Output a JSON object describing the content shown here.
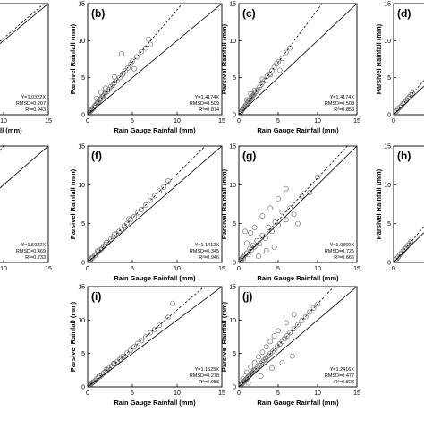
{
  "chart_data": [
    {
      "id": "a",
      "type": "scatter",
      "panel_label": "",
      "xlabel": "Rain Gauge Rainfall (mm)",
      "ylabel": "",
      "xlim": [
        0,
        15
      ],
      "ylim": [
        0,
        15
      ],
      "xticks": [
        10,
        15
      ],
      "yticks": [],
      "stats": [
        "Y=1.0322X",
        "RMSD=0.207",
        "R²=0.943"
      ],
      "fit_slope": 1.0322,
      "x": [
        0.2,
        0.4,
        0.6,
        0.9,
        1.2,
        1.6,
        2.0,
        2.5,
        3.0,
        3.5,
        4.2,
        5.0,
        6.0,
        7.5
      ],
      "y": [
        0.2,
        0.4,
        0.6,
        0.9,
        1.3,
        1.6,
        2.1,
        2.6,
        3.1,
        3.6,
        4.3,
        5.2,
        6.1,
        7.8
      ]
    },
    {
      "id": "b",
      "type": "scatter",
      "panel_label": "(b)",
      "xlabel": "Rain Gauge Rainfall (mm)",
      "ylabel": "Parsivel Rainfall (mm)",
      "xlim": [
        0,
        15
      ],
      "ylim": [
        0,
        15
      ],
      "xticks": [
        0,
        5,
        10,
        15
      ],
      "yticks": [
        0,
        5,
        10,
        15
      ],
      "stats": [
        "Y=1.4174X",
        "RMSD=0.509",
        "R²=0.874"
      ],
      "fit_slope": 1.4174,
      "x": [
        0.1,
        0.2,
        0.3,
        0.4,
        0.5,
        0.6,
        0.7,
        0.8,
        0.9,
        1.0,
        1.1,
        1.2,
        1.3,
        1.4,
        1.5,
        1.6,
        1.7,
        1.8,
        1.9,
        2.0,
        2.2,
        2.4,
        2.6,
        2.8,
        3.0,
        3.3,
        3.6,
        3.9,
        4.2,
        4.5,
        4.8,
        5.0,
        5.5,
        6.0,
        6.5,
        7.0,
        1.0,
        1.5,
        2.0,
        3.0,
        4.0,
        5.2,
        6.8,
        3.8
      ],
      "y": [
        0.1,
        0.3,
        0.5,
        0.6,
        0.7,
        0.8,
        1.0,
        1.2,
        1.3,
        1.5,
        1.6,
        1.7,
        1.9,
        2.1,
        2.2,
        2.4,
        2.5,
        2.6,
        2.8,
        3.0,
        3.1,
        3.4,
        3.8,
        4.0,
        4.3,
        4.6,
        5.0,
        5.4,
        5.9,
        6.3,
        6.8,
        7.2,
        7.8,
        8.5,
        9.0,
        9.5,
        2.2,
        3.0,
        3.6,
        5.1,
        5.6,
        6.2,
        10.2,
        8.2
      ]
    },
    {
      "id": "c",
      "type": "scatter",
      "panel_label": "(c)",
      "xlabel": "Rain Gauge Rainfall (mm)",
      "ylabel": "Parsivel Rainfall (mm)",
      "xlim": [
        0,
        15
      ],
      "ylim": [
        0,
        15
      ],
      "xticks": [
        0,
        5,
        10,
        15
      ],
      "yticks": [
        0,
        5,
        10,
        15
      ],
      "stats": [
        "Y=1.4174X",
        "RMSD=0.508",
        "R²=0.853"
      ],
      "fit_slope": 1.4174,
      "x": [
        0.1,
        0.2,
        0.3,
        0.4,
        0.5,
        0.6,
        0.7,
        0.8,
        0.9,
        1.0,
        1.1,
        1.2,
        1.3,
        1.4,
        1.5,
        1.6,
        1.7,
        1.8,
        1.9,
        2.0,
        2.2,
        2.4,
        2.6,
        2.8,
        3.0,
        3.3,
        3.6,
        3.9,
        4.2,
        4.5,
        4.8,
        5.0,
        5.5,
        6.0,
        1.0,
        1.5,
        2.0,
        3.0,
        4.0,
        5.2,
        6.5
      ],
      "y": [
        0.1,
        0.3,
        0.4,
        0.6,
        0.7,
        0.9,
        1.0,
        1.1,
        1.3,
        1.4,
        1.6,
        1.8,
        1.9,
        2.0,
        2.2,
        2.3,
        2.5,
        2.6,
        2.7,
        2.9,
        3.1,
        3.4,
        3.7,
        4.0,
        4.3,
        4.6,
        5.2,
        5.5,
        5.9,
        6.4,
        6.9,
        7.1,
        7.6,
        8.4,
        2.0,
        2.8,
        3.3,
        4.8,
        5.4,
        6.0,
        9.0
      ]
    },
    {
      "id": "d",
      "type": "scatter",
      "panel_label": "(d)",
      "xlabel": "",
      "ylabel": "Parsivel Rainfall (mm)",
      "xlim": [
        0,
        15
      ],
      "ylim": [
        0,
        15
      ],
      "xticks": [
        0
      ],
      "yticks": [
        0,
        5,
        10,
        15
      ],
      "stats": [],
      "fit_slope": 1.2,
      "x": [
        0.2,
        0.4,
        0.6,
        0.8,
        1.0,
        1.2,
        1.4,
        1.6,
        1.8,
        2.0,
        2.2,
        2.4
      ],
      "y": [
        0.3,
        0.5,
        0.8,
        1.0,
        1.2,
        1.5,
        1.7,
        1.9,
        2.2,
        2.4,
        2.7,
        2.9
      ]
    },
    {
      "id": "e",
      "type": "scatter",
      "panel_label": "",
      "xlabel": "ainfall (mm)",
      "ylabel": "",
      "xlim": [
        0,
        15
      ],
      "ylim": [
        0,
        15
      ],
      "xticks": [
        10,
        15
      ],
      "yticks": [],
      "stats": [
        "Y=1.5022X",
        "RMSD=0.469",
        "R²=0.733"
      ],
      "fit_slope": 1.5022,
      "x": [
        0.3,
        0.5,
        0.8,
        1.0,
        1.3,
        1.6,
        2.0,
        2.4
      ],
      "y": [
        0.4,
        0.8,
        1.2,
        1.5,
        2.0,
        2.4,
        3.0,
        3.6
      ]
    },
    {
      "id": "f",
      "type": "scatter",
      "panel_label": "(f)",
      "xlabel": "Rain Gauge Rainfall (mm)",
      "ylabel": "Parsivel Rainfall (mm)",
      "xlim": [
        0,
        15
      ],
      "ylim": [
        0,
        15
      ],
      "xticks": [
        0,
        5,
        10,
        15
      ],
      "yticks": [
        0,
        5,
        10,
        15
      ],
      "stats": [
        "Y=1.1412X",
        "RMSD=0.345",
        "R²=0.946"
      ],
      "fit_slope": 1.1412,
      "x": [
        0.1,
        0.2,
        0.3,
        0.4,
        0.5,
        0.6,
        0.8,
        1.0,
        1.2,
        1.4,
        1.6,
        1.8,
        2.0,
        2.3,
        2.6,
        2.9,
        3.2,
        3.5,
        3.8,
        4.1,
        4.4,
        4.8,
        5.2,
        5.6,
        6.0,
        6.5,
        7.0,
        7.5,
        8.0,
        8.5,
        9.0,
        1.1,
        2.1,
        3.0,
        4.6
      ],
      "y": [
        0.1,
        0.2,
        0.3,
        0.5,
        0.6,
        0.7,
        0.9,
        1.1,
        1.4,
        1.6,
        1.8,
        2.1,
        2.3,
        2.6,
        3.0,
        3.3,
        3.7,
        4.0,
        4.3,
        4.7,
        5.0,
        5.5,
        5.9,
        6.4,
        6.8,
        7.4,
        8.0,
        8.6,
        9.2,
        9.7,
        10.5,
        1.5,
        2.6,
        3.6,
        5.6
      ]
    },
    {
      "id": "g",
      "type": "scatter",
      "panel_label": "(g)",
      "xlabel": "Rain Gauge Rainfall (mm)",
      "ylabel": "Parsivel Rainfall (mm)",
      "xlim": [
        0,
        15
      ],
      "ylim": [
        0,
        15
      ],
      "xticks": [
        0,
        5,
        10,
        15
      ],
      "yticks": [
        0,
        5,
        10,
        15
      ],
      "stats": [
        "Y=1.0869X",
        "RMSD=0.725",
        "R²=0.666"
      ],
      "fit_slope": 1.0869,
      "x": [
        0.1,
        0.2,
        0.3,
        0.4,
        0.5,
        0.6,
        0.8,
        1.0,
        1.2,
        1.4,
        1.6,
        1.8,
        2.0,
        2.3,
        2.6,
        3.0,
        3.4,
        3.8,
        4.2,
        4.6,
        5.0,
        5.5,
        6.0,
        6.5,
        7.0,
        8.0,
        9.0,
        10.0,
        1.0,
        2.0,
        3.0,
        4.0,
        5.0,
        6.0,
        2.5,
        3.5,
        1.5,
        7.5,
        0.8,
        4.5
      ],
      "y": [
        0.1,
        0.3,
        0.2,
        0.5,
        0.7,
        0.5,
        1.0,
        1.2,
        1.0,
        1.8,
        1.6,
        2.2,
        2.0,
        2.8,
        2.4,
        3.5,
        3.1,
        4.5,
        4.0,
        5.2,
        4.8,
        6.5,
        5.5,
        7.0,
        6.2,
        8.5,
        9.0,
        11.0,
        2.5,
        4.5,
        6.0,
        7.0,
        8.2,
        9.5,
        0.8,
        1.5,
        3.8,
        5.0,
        4.0,
        2.0
      ]
    },
    {
      "id": "h",
      "type": "scatter",
      "panel_label": "(h)",
      "xlabel": "",
      "ylabel": "Parsivel Rainfall (mm)",
      "xlim": [
        0,
        15
      ],
      "ylim": [
        0,
        15
      ],
      "xticks": [
        0
      ],
      "yticks": [
        0,
        5,
        10,
        15
      ],
      "stats": [],
      "fit_slope": 1.2,
      "x": [
        0.2,
        0.4,
        0.6,
        0.8,
        1.0,
        1.2,
        1.4,
        1.6,
        1.8,
        2.0,
        2.2
      ],
      "y": [
        0.3,
        0.5,
        0.7,
        1.0,
        1.2,
        1.5,
        1.7,
        1.9,
        2.2,
        2.4,
        2.7
      ]
    },
    {
      "id": "i",
      "type": "scatter",
      "panel_label": "(i)",
      "xlabel": "Rain Gauge Rainfall (mm)",
      "ylabel": "Parsivel Rainfall (mm)",
      "xlim": [
        0,
        15
      ],
      "ylim": [
        0,
        15
      ],
      "xticks": [
        0,
        5,
        10,
        15
      ],
      "yticks": [
        0,
        5,
        10,
        15
      ],
      "stats": [
        "Y=1.1525X",
        "RMSD=0.278",
        "R²=0.956"
      ],
      "fit_slope": 1.1525,
      "x": [
        0.1,
        0.2,
        0.3,
        0.4,
        0.5,
        0.6,
        0.7,
        0.8,
        1.0,
        1.2,
        1.4,
        1.6,
        1.8,
        2.0,
        2.2,
        2.4,
        2.7,
        3.0,
        3.3,
        3.6,
        4.0,
        4.4,
        4.8,
        5.2,
        5.6,
        6.0,
        6.5,
        7.0,
        7.5,
        8.0,
        9.0,
        9.5,
        1.3,
        2.1,
        2.9,
        3.8
      ],
      "y": [
        0.1,
        0.2,
        0.3,
        0.5,
        0.6,
        0.7,
        0.8,
        0.9,
        1.2,
        1.4,
        1.6,
        1.8,
        2.1,
        2.3,
        2.5,
        2.8,
        3.1,
        3.5,
        3.8,
        4.1,
        4.6,
        5.1,
        5.5,
        6.0,
        6.5,
        6.9,
        7.5,
        8.1,
        8.6,
        9.2,
        10.4,
        12.5,
        1.7,
        2.6,
        3.5,
        4.5
      ]
    },
    {
      "id": "j",
      "type": "scatter",
      "panel_label": "(j)",
      "xlabel": "Rain Gauge Rainfall (mm)",
      "ylabel": "Parsivel Rainfall (mm)",
      "xlim": [
        0,
        15
      ],
      "ylim": [
        0,
        15
      ],
      "xticks": [
        0,
        5,
        10,
        15
      ],
      "yticks": [
        0,
        5,
        10,
        15
      ],
      "stats": [
        "Y=1.2416X",
        "RMSD=0.477",
        "R²=0.823"
      ],
      "fit_slope": 1.2416,
      "x": [
        0.1,
        0.2,
        0.3,
        0.4,
        0.5,
        0.6,
        0.7,
        0.8,
        0.9,
        1.0,
        1.1,
        1.2,
        1.3,
        1.4,
        1.5,
        1.6,
        1.7,
        1.8,
        1.9,
        2.0,
        2.2,
        2.4,
        2.6,
        2.8,
        3.0,
        3.2,
        3.4,
        3.6,
        3.8,
        4.0,
        4.3,
        4.6,
        4.9,
        5.2,
        5.5,
        5.8,
        6.1,
        6.5,
        7.0,
        7.5,
        8.0,
        8.5,
        9.0,
        9.5,
        10.0,
        0.5,
        1.0,
        1.5,
        2.0,
        2.5,
        3.0,
        3.5,
        4.0,
        4.5,
        5.0,
        6.0,
        7.0,
        1.2,
        2.8,
        4.2,
        5.5,
        6.8
      ],
      "y": [
        0.1,
        0.3,
        0.3,
        0.5,
        0.6,
        0.8,
        0.8,
        1.0,
        1.1,
        1.2,
        1.4,
        1.5,
        1.6,
        1.7,
        1.9,
        2.0,
        2.1,
        2.2,
        2.4,
        2.5,
        2.7,
        3.0,
        3.2,
        3.5,
        3.7,
        4.0,
        4.2,
        4.5,
        4.7,
        5.0,
        5.3,
        5.7,
        6.1,
        6.4,
        6.8,
        7.2,
        7.6,
        8.1,
        8.7,
        9.3,
        9.9,
        10.5,
        11.2,
        11.8,
        12.4,
        1.2,
        2.2,
        3.0,
        3.6,
        4.5,
        5.2,
        6.0,
        6.8,
        7.6,
        8.4,
        9.6,
        10.8,
        0.6,
        1.6,
        2.8,
        3.6,
        4.6
      ]
    }
  ]
}
